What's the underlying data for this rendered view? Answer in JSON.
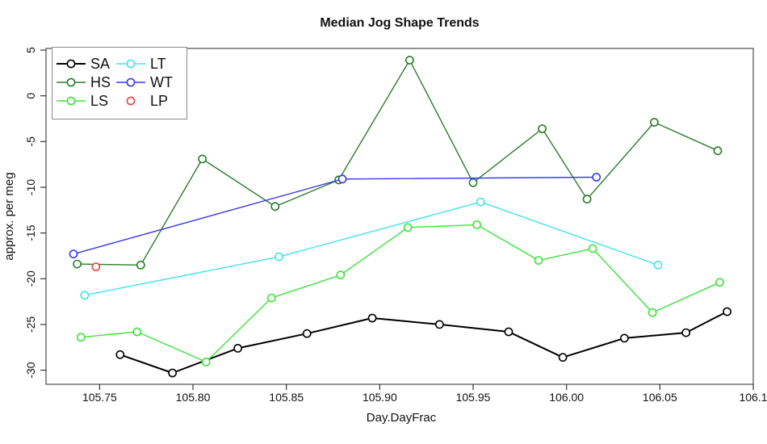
{
  "title": "Median Jog Shape Trends",
  "chart_data": {
    "type": "line",
    "title": "Median Jog Shape Trends",
    "xlabel": "Day.DayFrac",
    "ylabel": "approx. per meg",
    "xlim": [
      105.7213,
      106.1
    ],
    "ylim": [
      -31.54,
      5.18
    ],
    "grid": false,
    "legend_position": "top-left",
    "x_ticks": [
      {
        "value": 105.75,
        "label": "105.75"
      },
      {
        "value": 105.8,
        "label": "105.80"
      },
      {
        "value": 105.85,
        "label": "105.85"
      },
      {
        "value": 105.9,
        "label": "105.90"
      },
      {
        "value": 105.95,
        "label": "105.95"
      },
      {
        "value": 106.0,
        "label": "106.00"
      },
      {
        "value": 106.05,
        "label": "106.05"
      },
      {
        "value": 106.1,
        "label": "106.1"
      }
    ],
    "y_ticks": [
      {
        "value": 5,
        "label": "5"
      },
      {
        "value": 0,
        "label": "0"
      },
      {
        "value": -5,
        "label": "-5"
      },
      {
        "value": -10,
        "label": "-10"
      },
      {
        "value": -15,
        "label": "-15"
      },
      {
        "value": -20,
        "label": "-20"
      },
      {
        "value": -25,
        "label": "-25"
      },
      {
        "value": -30,
        "label": "-30"
      }
    ],
    "series": [
      {
        "name": "SA",
        "color": "#000000",
        "line": true,
        "line_width": 2.0,
        "marker": "open-circle",
        "points": [
          [
            105.761,
            -28.3
          ],
          [
            105.789,
            -30.3
          ],
          [
            105.824,
            -27.6
          ],
          [
            105.861,
            -26.0
          ],
          [
            105.896,
            -24.3
          ],
          [
            105.932,
            -25.0
          ],
          [
            105.969,
            -25.8
          ],
          [
            105.998,
            -28.6
          ],
          [
            106.031,
            -26.5
          ],
          [
            106.064,
            -25.9
          ],
          [
            106.086,
            -23.6
          ]
        ]
      },
      {
        "name": "HS",
        "color": "#2b7d2b",
        "line": true,
        "line_width": 1.4,
        "marker": "open-circle",
        "points": [
          [
            105.738,
            -18.4
          ],
          [
            105.772,
            -18.5
          ],
          [
            105.805,
            -6.9
          ],
          [
            105.844,
            -12.1
          ],
          [
            105.878,
            -9.2
          ],
          [
            105.916,
            3.9
          ],
          [
            105.95,
            -9.5
          ],
          [
            105.987,
            -3.6
          ],
          [
            106.011,
            -11.3
          ],
          [
            106.047,
            -2.9
          ],
          [
            106.081,
            -6.0
          ]
        ]
      },
      {
        "name": "LS",
        "color": "#3be43b",
        "line": true,
        "line_width": 1.4,
        "marker": "open-circle",
        "points": [
          [
            105.74,
            -26.4
          ],
          [
            105.77,
            -25.8
          ],
          [
            105.807,
            -29.1
          ],
          [
            105.842,
            -22.1
          ],
          [
            105.879,
            -19.6
          ],
          [
            105.915,
            -14.4
          ],
          [
            105.952,
            -14.1
          ],
          [
            105.985,
            -18.0
          ],
          [
            106.014,
            -16.7
          ],
          [
            106.046,
            -23.7
          ],
          [
            106.082,
            -20.4
          ]
        ]
      },
      {
        "name": "LT",
        "color": "#40e2ee",
        "line": true,
        "line_width": 1.4,
        "marker": "open-circle",
        "points": [
          [
            105.742,
            -21.8
          ],
          [
            105.846,
            -17.6
          ],
          [
            105.954,
            -11.6
          ],
          [
            106.049,
            -18.5
          ]
        ]
      },
      {
        "name": "WT",
        "color": "#3a3aee",
        "line": true,
        "line_width": 1.4,
        "marker": "open-circle",
        "points": [
          [
            105.736,
            -17.3
          ],
          [
            105.88,
            -9.1
          ],
          [
            106.016,
            -8.9
          ]
        ]
      },
      {
        "name": "LP",
        "color": "#ee4343",
        "line": false,
        "line_width": 1.4,
        "marker": "open-circle",
        "points": [
          [
            105.748,
            -18.7
          ]
        ]
      }
    ],
    "legend_columns": [
      [
        "SA",
        "HS",
        "LS"
      ],
      [
        "LT",
        "WT",
        "LP"
      ]
    ]
  }
}
